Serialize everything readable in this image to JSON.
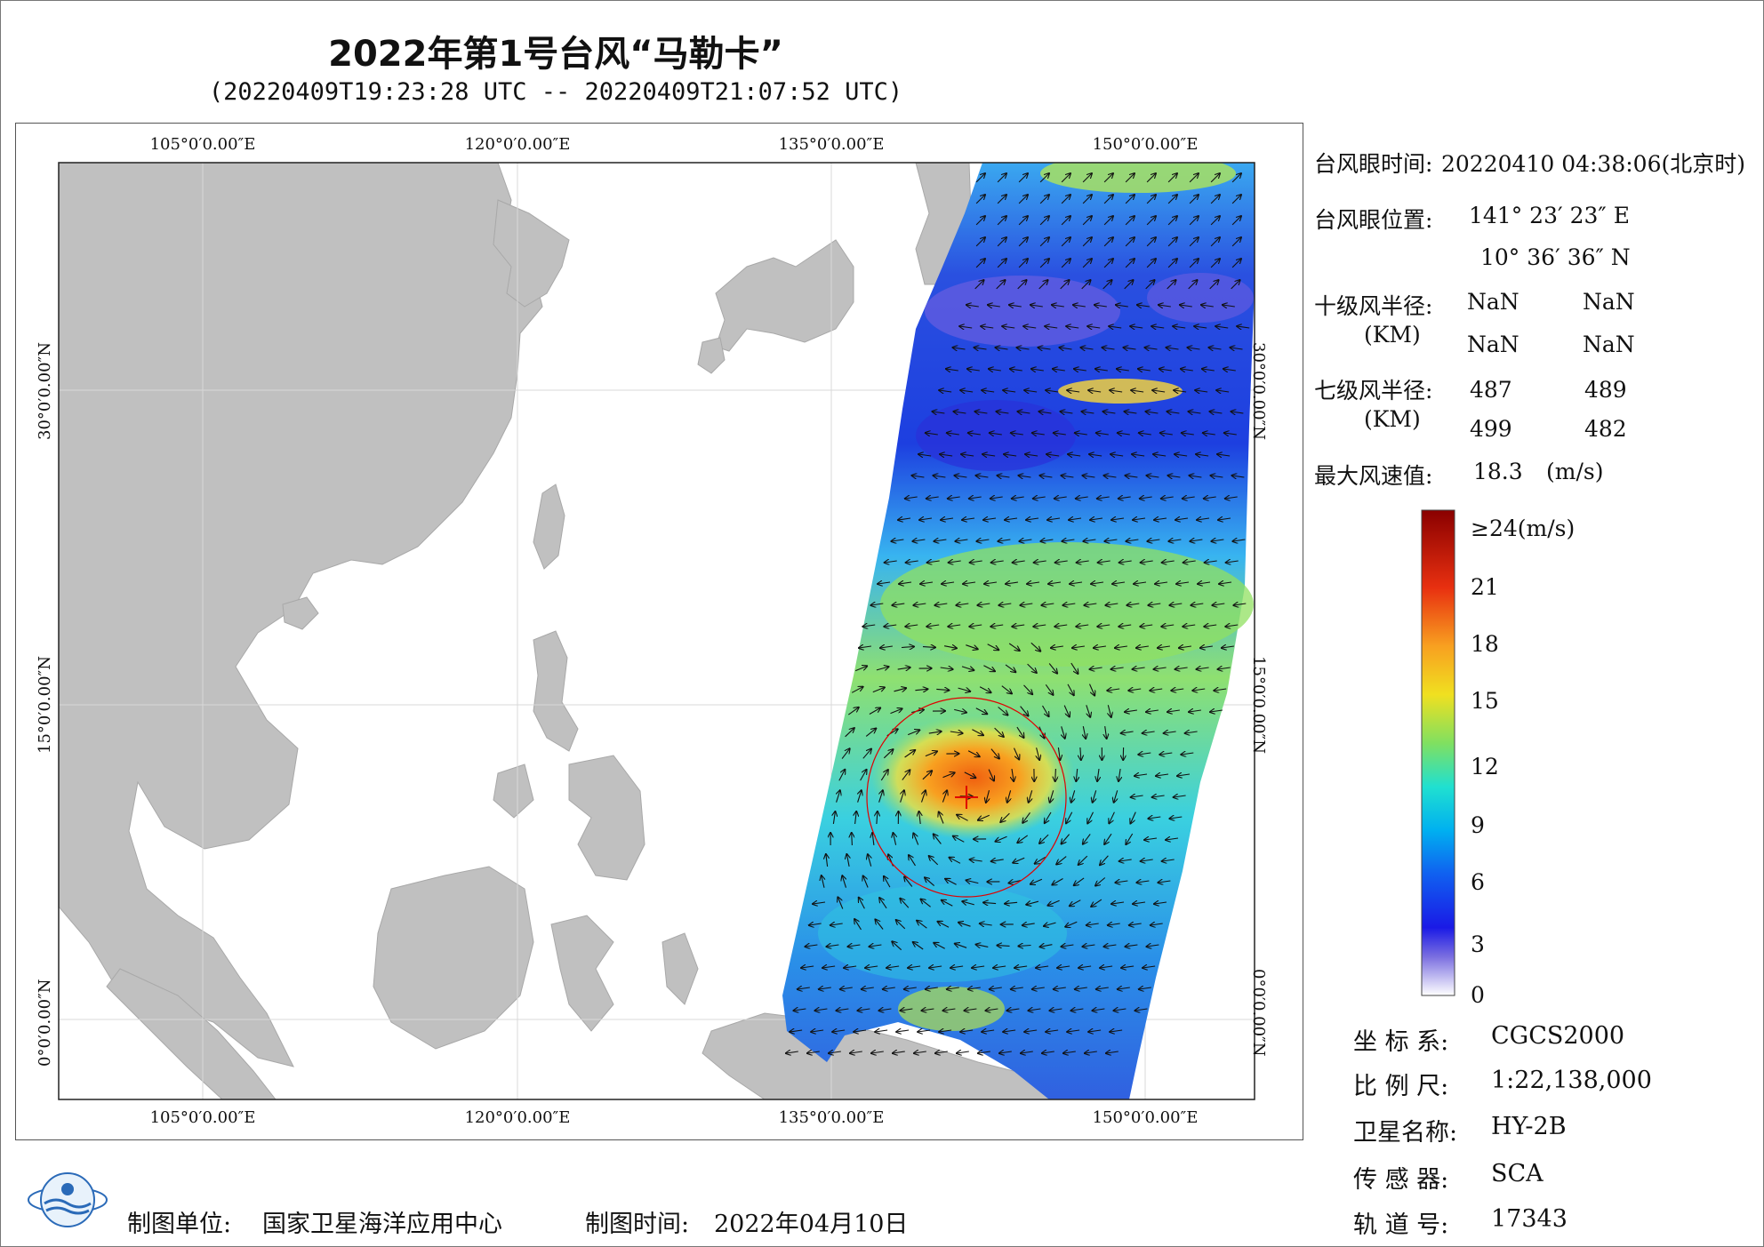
{
  "title": "2022年第1号台风“马勒卡”",
  "subtitle": "(20220409T19:23:28 UTC -- 20220409T21:07:52 UTC)",
  "axes": {
    "lon_ticks": [
      "105°0′0.00″E",
      "120°0′0.00″E",
      "135°0′0.00″E",
      "150°0′0.00″E"
    ],
    "lat_ticks": [
      "30°0′0.00″N",
      "15°0′0.00″N",
      "0°0′0.00″N"
    ]
  },
  "info": {
    "eye_time_label": "台风眼时间:",
    "eye_time_value": "20220410 04:38:06(北京时)",
    "eye_pos_label": "台风眼位置:",
    "eye_lon": "141° 23′ 23″ E",
    "eye_lat": "10° 36′ 36″ N",
    "r10_label": "十级风半径:",
    "r10_unit": "(KM)",
    "r10_values": [
      "NaN",
      "NaN",
      "NaN",
      "NaN"
    ],
    "r7_label": "七级风半径:",
    "r7_unit": "(KM)",
    "r7_values": [
      "487",
      "489",
      "499",
      "482"
    ],
    "max_wind_label": "最大风速值:",
    "max_wind_value": "18.3",
    "max_wind_unit": "(m/s)"
  },
  "colorbar": {
    "labels": [
      "≥24(m/s)",
      "21",
      "18",
      "15",
      "12",
      "9",
      "6",
      "3",
      "0"
    ],
    "label_values": [
      24,
      21,
      18,
      15,
      12,
      9,
      6,
      3,
      0
    ],
    "min": 0,
    "max": 24
  },
  "meta": {
    "crs_label": "坐 标 系:",
    "crs_value": "CGCS2000",
    "scale_label": "比 例 尺:",
    "scale_value": "1:22,138,000",
    "satellite_label": "卫星名称:",
    "satellite_value": "HY-2B",
    "sensor_label": "传 感 器:",
    "sensor_value": "SCA",
    "orbit_label": "轨 道 号:",
    "orbit_value": "17343"
  },
  "footer": {
    "producer_label": "制图单位:",
    "producer_value": "国家卫星海洋应用中心",
    "date_label": "制图时间:",
    "date_value": "2022年04月10日"
  },
  "colors": {
    "land": "#c0c0c0",
    "grid": "#d8d8d8",
    "typhoon_marker": "#e00000"
  },
  "icons": {
    "logo": "nsoas-logo",
    "eye": "plus-marker"
  }
}
